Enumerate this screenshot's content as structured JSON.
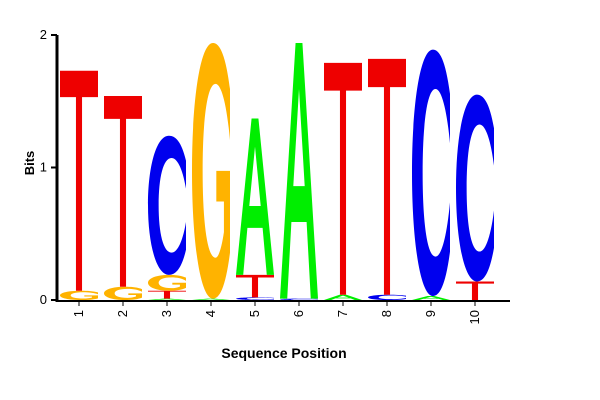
{
  "chart_data": {
    "type": "sequence-logo",
    "xlabel": "Sequence Position",
    "ylabel": "Bits",
    "ylim": [
      0,
      2
    ],
    "yticks": [
      "0",
      "1",
      "2"
    ],
    "positions": [
      "1",
      "2",
      "3",
      "4",
      "5",
      "6",
      "7",
      "8",
      "9",
      "10"
    ],
    "letter_colors": {
      "A": "#00ee00",
      "C": "#0000ee",
      "G": "#ffb300",
      "T": "#ee0000"
    },
    "columns": [
      {
        "position": "1",
        "letters": [
          {
            "base": "G",
            "bits": 0.07
          },
          {
            "base": "T",
            "bits": 1.66
          }
        ]
      },
      {
        "position": "2",
        "letters": [
          {
            "base": "G",
            "bits": 0.1
          },
          {
            "base": "T",
            "bits": 1.44
          }
        ]
      },
      {
        "position": "3",
        "letters": [
          {
            "base": "A",
            "bits": 0.01
          },
          {
            "base": "T",
            "bits": 0.06
          },
          {
            "base": "G",
            "bits": 0.12
          },
          {
            "base": "C",
            "bits": 1.05
          }
        ]
      },
      {
        "position": "4",
        "letters": [
          {
            "base": "A",
            "bits": 0.01
          },
          {
            "base": "G",
            "bits": 1.93
          }
        ]
      },
      {
        "position": "5",
        "letters": [
          {
            "base": "C",
            "bits": 0.02
          },
          {
            "base": "T",
            "bits": 0.17
          },
          {
            "base": "A",
            "bits": 1.18
          }
        ]
      },
      {
        "position": "6",
        "letters": [
          {
            "base": "C",
            "bits": 0.01
          },
          {
            "base": "A",
            "bits": 1.93
          }
        ]
      },
      {
        "position": "7",
        "letters": [
          {
            "base": "A",
            "bits": 0.04
          },
          {
            "base": "T",
            "bits": 1.75
          }
        ]
      },
      {
        "position": "8",
        "letters": [
          {
            "base": "C",
            "bits": 0.04
          },
          {
            "base": "T",
            "bits": 1.78
          }
        ]
      },
      {
        "position": "9",
        "letters": [
          {
            "base": "A",
            "bits": 0.03
          },
          {
            "base": "C",
            "bits": 1.86
          }
        ]
      },
      {
        "position": "10",
        "letters": [
          {
            "base": "T",
            "bits": 0.14
          },
          {
            "base": "C",
            "bits": 1.41
          }
        ]
      }
    ]
  }
}
